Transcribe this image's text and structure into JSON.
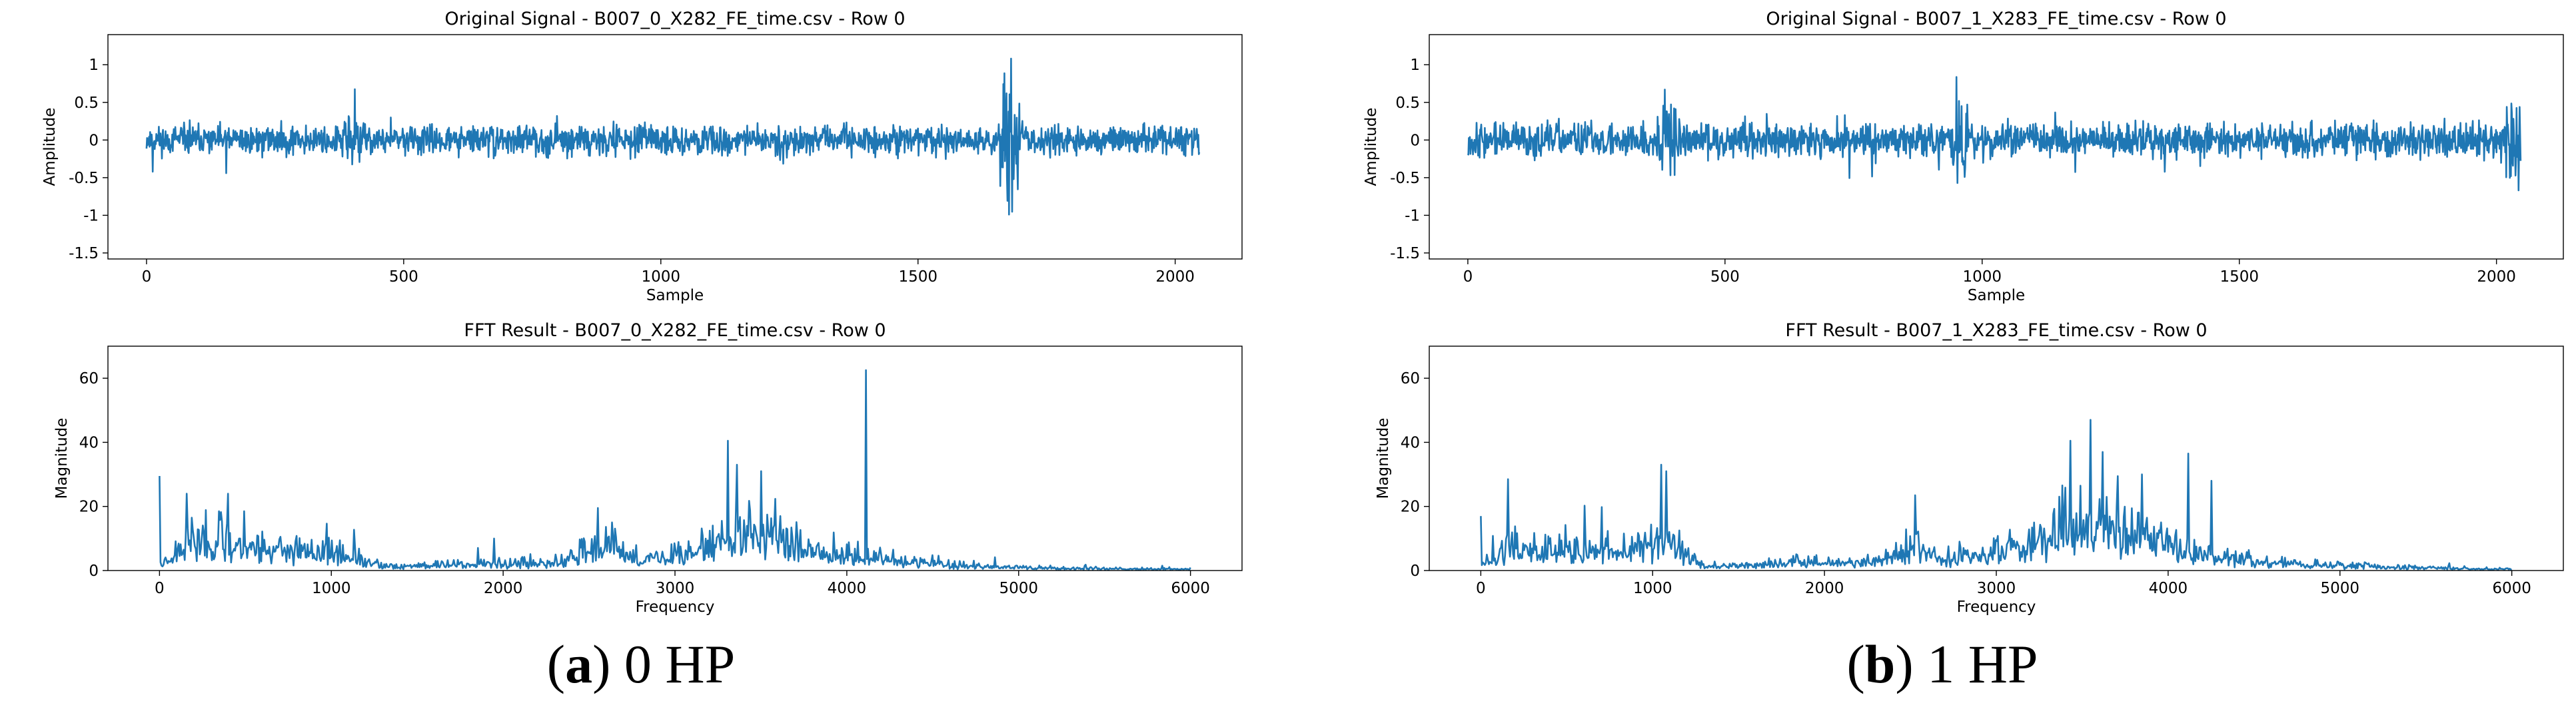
{
  "line_color": "#1f77b4",
  "captions": [
    {
      "letter": "a",
      "text": " 0 HP"
    },
    {
      "letter": "b",
      "text": " 1 HP"
    }
  ],
  "chart_data": [
    {
      "type": "line",
      "kind": "signal",
      "seed": 11,
      "title": "Original Signal - B007_0_X282_FE_time.csv - Row 0",
      "xlabel": "Sample",
      "ylabel": "Amplitude",
      "xlim": [
        -75,
        2130
      ],
      "ylim": [
        -1.58,
        1.4
      ],
      "xticks": [
        0,
        500,
        1000,
        1500,
        2000
      ],
      "yticks": [
        -1.5,
        -1.0,
        -0.5,
        0.0,
        0.5,
        1.0
      ],
      "x_range": [
        0,
        2047
      ],
      "n_points": 2048,
      "noise_level": 0.09,
      "bursts": [
        {
          "x": 1680,
          "width": 25,
          "amplitude": 0.55
        },
        {
          "x": 400,
          "width": 30,
          "amplitude": 0.12
        }
      ],
      "peaks": [
        [
          1672,
          0.62
        ],
        [
          1686,
          -0.52
        ],
        [
          155,
          -0.44
        ],
        [
          12,
          -0.42
        ]
      ]
    },
    {
      "type": "line",
      "kind": "fft",
      "seed": 23,
      "title": "FFT Result - B007_0_X282_FE_time.csv - Row 0",
      "xlabel": "Frequency",
      "ylabel": "Magnitude",
      "xlim": [
        -300,
        6300
      ],
      "ylim": [
        0,
        70
      ],
      "xticks": [
        0,
        1000,
        2000,
        3000,
        4000,
        5000,
        6000
      ],
      "yticks": [
        0,
        20,
        40,
        60
      ],
      "x_range": [
        0,
        6000
      ],
      "n_points": 1024,
      "envelope": [
        [
          0,
          2
        ],
        [
          150,
          10
        ],
        [
          400,
          10
        ],
        [
          800,
          7
        ],
        [
          1100,
          5
        ],
        [
          1300,
          1.5
        ],
        [
          1900,
          2.5
        ],
        [
          2300,
          2.5
        ],
        [
          2600,
          9
        ],
        [
          2800,
          3
        ],
        [
          3200,
          9
        ],
        [
          3400,
          14
        ],
        [
          3600,
          12
        ],
        [
          3900,
          6
        ],
        [
          4300,
          4
        ],
        [
          4600,
          2
        ],
        [
          5000,
          1
        ],
        [
          6000,
          0.5
        ]
      ],
      "peaks": [
        [
          0,
          29.5
        ],
        [
          160,
          24
        ],
        [
          400,
          24
        ],
        [
          1950,
          10
        ],
        [
          2550,
          19.5
        ],
        [
          3310,
          40.5
        ],
        [
          3360,
          33
        ],
        [
          3500,
          31
        ],
        [
          4110,
          62.5
        ]
      ]
    },
    {
      "type": "line",
      "kind": "signal",
      "seed": 37,
      "title": "Original Signal - B007_1_X283_FE_time.csv - Row 0",
      "xlabel": "Sample",
      "ylabel": "Amplitude",
      "xlim": [
        -75,
        2130
      ],
      "ylim": [
        -1.58,
        1.4
      ],
      "xticks": [
        0,
        500,
        1000,
        1500,
        2000
      ],
      "yticks": [
        -1.5,
        -1.0,
        -0.5,
        0.0,
        0.5,
        1.0
      ],
      "x_range": [
        0,
        2047
      ],
      "n_points": 2048,
      "noise_level": 0.11,
      "bursts": [
        {
          "x": 390,
          "width": 25,
          "amplitude": 0.25
        },
        {
          "x": 960,
          "width": 25,
          "amplitude": 0.2
        },
        {
          "x": 2030,
          "width": 25,
          "amplitude": 0.18
        }
      ],
      "peaks": [
        [
          383,
          0.67
        ],
        [
          952,
          -0.57
        ],
        [
          960,
          0.45
        ]
      ]
    },
    {
      "type": "line",
      "kind": "fft",
      "seed": 51,
      "title": "FFT Result - B007_1_X283_FE_time.csv - Row 0",
      "xlabel": "Frequency",
      "ylabel": "Magnitude",
      "xlim": [
        -300,
        6300
      ],
      "ylim": [
        0,
        70
      ],
      "xticks": [
        0,
        1000,
        2000,
        3000,
        4000,
        5000,
        6000
      ],
      "yticks": [
        0,
        20,
        40,
        60
      ],
      "x_range": [
        0,
        6000
      ],
      "n_points": 1024,
      "envelope": [
        [
          0,
          2
        ],
        [
          150,
          7
        ],
        [
          400,
          8
        ],
        [
          700,
          7
        ],
        [
          1100,
          9
        ],
        [
          1300,
          1.5
        ],
        [
          1900,
          3
        ],
        [
          2300,
          3
        ],
        [
          2500,
          8
        ],
        [
          2700,
          4
        ],
        [
          3200,
          9
        ],
        [
          3400,
          15
        ],
        [
          3700,
          15
        ],
        [
          3900,
          10
        ],
        [
          4300,
          5
        ],
        [
          4700,
          2.5
        ],
        [
          5100,
          1.5
        ],
        [
          6000,
          0.5
        ]
      ],
      "peaks": [
        [
          0,
          17
        ],
        [
          160,
          28.5
        ],
        [
          1050,
          33
        ],
        [
          1080,
          31
        ],
        [
          2530,
          23.5
        ],
        [
          3430,
          40.5
        ],
        [
          3550,
          47
        ],
        [
          3620,
          37
        ],
        [
          3850,
          30
        ],
        [
          4120,
          36.5
        ],
        [
          4250,
          28
        ]
      ]
    }
  ]
}
